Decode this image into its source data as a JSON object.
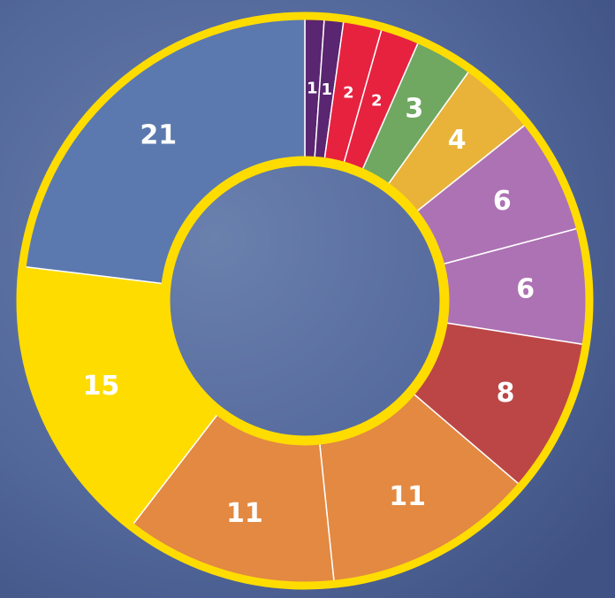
{
  "chart_data": {
    "type": "pie",
    "donut": true,
    "values": [
      1,
      1,
      2,
      2,
      3,
      4,
      6,
      6,
      8,
      11,
      11,
      15,
      21
    ],
    "colors": [
      "#5a2571",
      "#5a2571",
      "#e6223f",
      "#e6223f",
      "#70a862",
      "#e9b33a",
      "#ad72b3",
      "#ad72b3",
      "#bc4646",
      "#e38942",
      "#e38942",
      "#ffdc00",
      "#5b79ae"
    ],
    "border_color": "#ffdc00"
  }
}
